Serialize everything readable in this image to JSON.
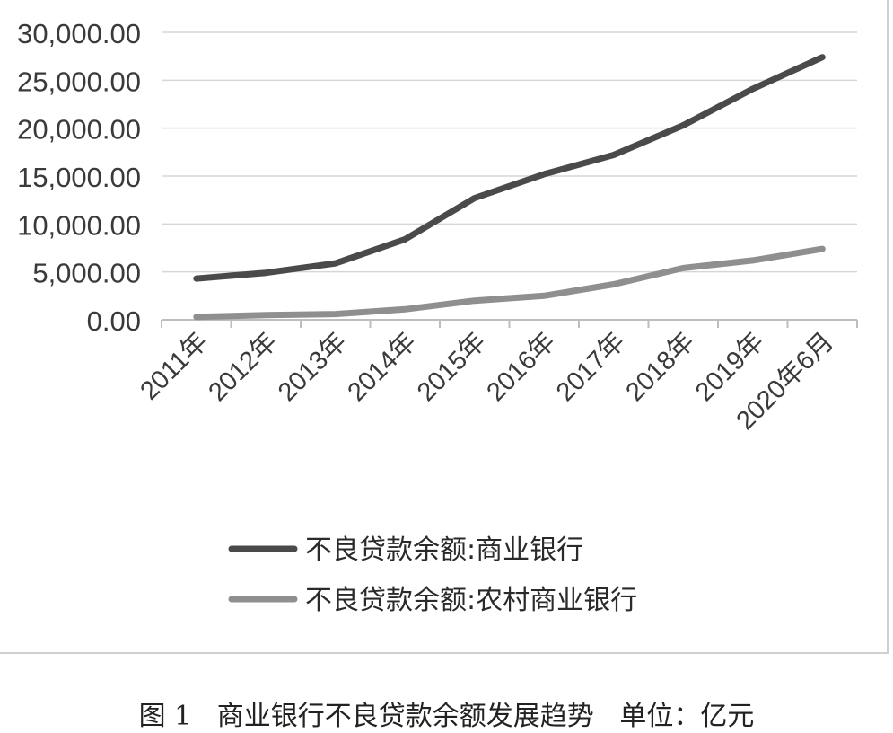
{
  "chart_data": {
    "type": "line",
    "title": "",
    "xlabel": "",
    "ylabel": "",
    "categories": [
      "2011年",
      "2012年",
      "2013年",
      "2014年",
      "2015年",
      "2016年",
      "2017年",
      "2018年",
      "2019年",
      "2020年6月"
    ],
    "yticks": [
      "0.00",
      "5,000.00",
      "10,000.00",
      "15,000.00",
      "20,000.00",
      "25,000.00",
      "30,000.00"
    ],
    "ylim": [
      0,
      30000
    ],
    "grid": true,
    "legend_position": "bottom",
    "series": [
      {
        "name": "不良贷款余额:商业银行",
        "color": "#4a4a4a",
        "values": [
          4300,
          4900,
          5900,
          8400,
          12700,
          15200,
          17200,
          20300,
          24100,
          27400
        ]
      },
      {
        "name": "不良贷款余额:农村商业银行",
        "color": "#8f8f8f",
        "values": [
          300,
          500,
          600,
          1100,
          2000,
          2500,
          3700,
          5400,
          6200,
          7400
        ]
      }
    ]
  },
  "caption": {
    "text": "图 1   商业银行不良贷款余额发展趋势   单位：亿元"
  }
}
